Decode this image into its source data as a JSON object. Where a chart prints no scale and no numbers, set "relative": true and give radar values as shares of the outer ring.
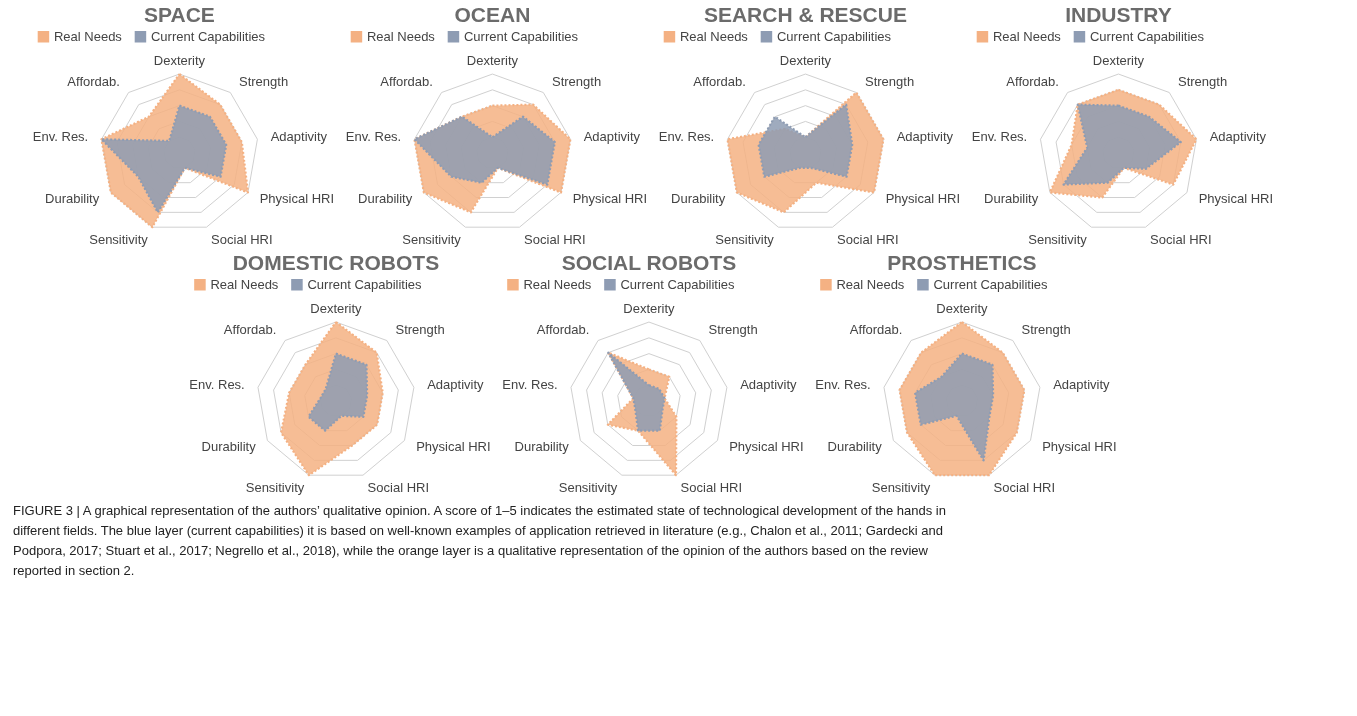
{
  "chart_data": [
    {
      "type": "radar",
      "title": "SPACE",
      "relative": true,
      "grid": true,
      "legend": "top",
      "line_style": "dotted",
      "categories": [
        "Dexterity",
        "Strength",
        "Adaptivity",
        "Physical HRI",
        "Social HRI",
        "Sensitivity",
        "Durability",
        "Env. Res.",
        "Affordab."
      ],
      "series": [
        {
          "name": "Real Needs",
          "color": "#f4b183",
          "values": [
            1,
            0.8,
            0.8,
            1,
            0.2,
            1,
            1,
            1,
            0.6
          ]
        },
        {
          "name": "Current Capabilities",
          "color": "#8e9cb3",
          "values": [
            0.6,
            0.6,
            0.6,
            0.6,
            0.2,
            0.8,
            0.6,
            1,
            0.2
          ]
        }
      ]
    },
    {
      "type": "radar",
      "title": "OCEAN",
      "relative": true,
      "grid": true,
      "legend": "top",
      "line_style": "dotted",
      "categories": [
        "Dexterity",
        "Strength",
        "Adaptivity",
        "Physical HRI",
        "Social HRI",
        "Sensitivity",
        "Durability",
        "Env. Res.",
        "Affordab."
      ],
      "series": [
        {
          "name": "Real Needs",
          "color": "#f4b183",
          "values": [
            0.6,
            0.8,
            1,
            1,
            0.2,
            0.8,
            1,
            1,
            0.6
          ]
        },
        {
          "name": "Current Capabilities",
          "color": "#8e9cb3",
          "values": [
            0.2,
            0.6,
            0.8,
            0.8,
            0.2,
            0.4,
            0.6,
            1,
            0.6
          ]
        }
      ]
    },
    {
      "type": "radar",
      "title": "SEARCH & RESCUE",
      "relative": true,
      "grid": true,
      "legend": "top",
      "line_style": "dotted",
      "categories": [
        "Dexterity",
        "Strength",
        "Adaptivity",
        "Physical HRI",
        "Social HRI",
        "Sensitivity",
        "Durability",
        "Env. Res.",
        "Affordab."
      ],
      "series": [
        {
          "name": "Real Needs",
          "color": "#f4b183",
          "values": [
            0.2,
            1,
            1,
            1,
            0.4,
            0.8,
            1,
            1,
            0.4
          ]
        },
        {
          "name": "Current Capabilities",
          "color": "#8e9cb3",
          "values": [
            0.2,
            0.8,
            0.6,
            0.6,
            0.2,
            0.2,
            0.6,
            0.6,
            0.6
          ]
        }
      ]
    },
    {
      "type": "radar",
      "title": "INDUSTRY",
      "relative": true,
      "grid": true,
      "legend": "top",
      "line_style": "dotted",
      "categories": [
        "Dexterity",
        "Strength",
        "Adaptivity",
        "Physical HRI",
        "Social HRI",
        "Sensitivity",
        "Durability",
        "Env. Res.",
        "Affordab."
      ],
      "series": [
        {
          "name": "Real Needs",
          "color": "#f4b183",
          "values": [
            0.8,
            0.8,
            1,
            0.8,
            0.2,
            0.6,
            1,
            0.6,
            0.8
          ]
        },
        {
          "name": "Current Capabilities",
          "color": "#8e9cb3",
          "values": [
            0.6,
            0.6,
            0.8,
            0.4,
            0.2,
            0.4,
            0.8,
            0.4,
            0.8
          ]
        }
      ]
    },
    {
      "type": "radar",
      "title": "DOMESTIC ROBOTS",
      "relative": true,
      "grid": true,
      "legend": "top",
      "line_style": "dotted",
      "categories": [
        "Dexterity",
        "Strength",
        "Adaptivity",
        "Physical HRI",
        "Social HRI",
        "Sensitivity",
        "Durability",
        "Env. Res.",
        "Affordab."
      ],
      "series": [
        {
          "name": "Real Needs",
          "color": "#f4b183",
          "values": [
            1,
            0.8,
            0.6,
            0.6,
            0.6,
            1,
            0.8,
            0.6,
            0.6
          ]
        },
        {
          "name": "Current Capabilities",
          "color": "#8e9cb3",
          "values": [
            0.6,
            0.6,
            0.4,
            0.4,
            0.2,
            0.4,
            0.4,
            0.2,
            0.2
          ]
        }
      ]
    },
    {
      "type": "radar",
      "title": "SOCIAL ROBOTS",
      "relative": true,
      "grid": true,
      "legend": "top",
      "line_style": "dotted",
      "categories": [
        "Dexterity",
        "Strength",
        "Adaptivity",
        "Physical HRI",
        "Social HRI",
        "Sensitivity",
        "Durability",
        "Env. Res.",
        "Affordab."
      ],
      "series": [
        {
          "name": "Real Needs",
          "color": "#f4b183",
          "values": [
            0.4,
            0.4,
            0.2,
            0.4,
            1,
            0.4,
            0.6,
            0.2,
            0.8
          ]
        },
        {
          "name": "Current Capabilities",
          "color": "#8e9cb3",
          "values": [
            0.2,
            0.2,
            0.2,
            0.2,
            0.4,
            0.4,
            0.2,
            0.2,
            0.8
          ]
        }
      ]
    },
    {
      "type": "radar",
      "title": "PROSTHETICS",
      "relative": true,
      "grid": true,
      "legend": "top",
      "line_style": "dotted",
      "categories": [
        "Dexterity",
        "Strength",
        "Adaptivity",
        "Physical HRI",
        "Social HRI",
        "Sensitivity",
        "Durability",
        "Env. Res.",
        "Affordab."
      ],
      "series": [
        {
          "name": "Real Needs",
          "color": "#f4b183",
          "values": [
            1,
            0.8,
            0.8,
            0.8,
            1,
            1,
            0.8,
            0.8,
            0.8
          ]
        },
        {
          "name": "Current Capabilities",
          "color": "#8e9cb3",
          "values": [
            0.6,
            0.6,
            0.4,
            0.4,
            0.8,
            0.2,
            0.6,
            0.6,
            0.4
          ]
        }
      ]
    },
    {
      "type": "other",
      "annotations": [
        "FIGURE 3 | A graphical representation of the authors’ qualitative opinion. A score of 1–5 indicates the estimated state of technological development of the hands in",
        "different fields. The blue layer (current capabilities) it is based on well-known examples of application retrieved in literature (e.g., Chalon et al., 2011; Gardecki and",
        "Podpora, 2017; Stuart et al., 2017; Negrello et al., 2018), while the orange layer is a qualitative representation of the opinion of the authors based on the review",
        "reported in section 2."
      ]
    }
  ]
}
